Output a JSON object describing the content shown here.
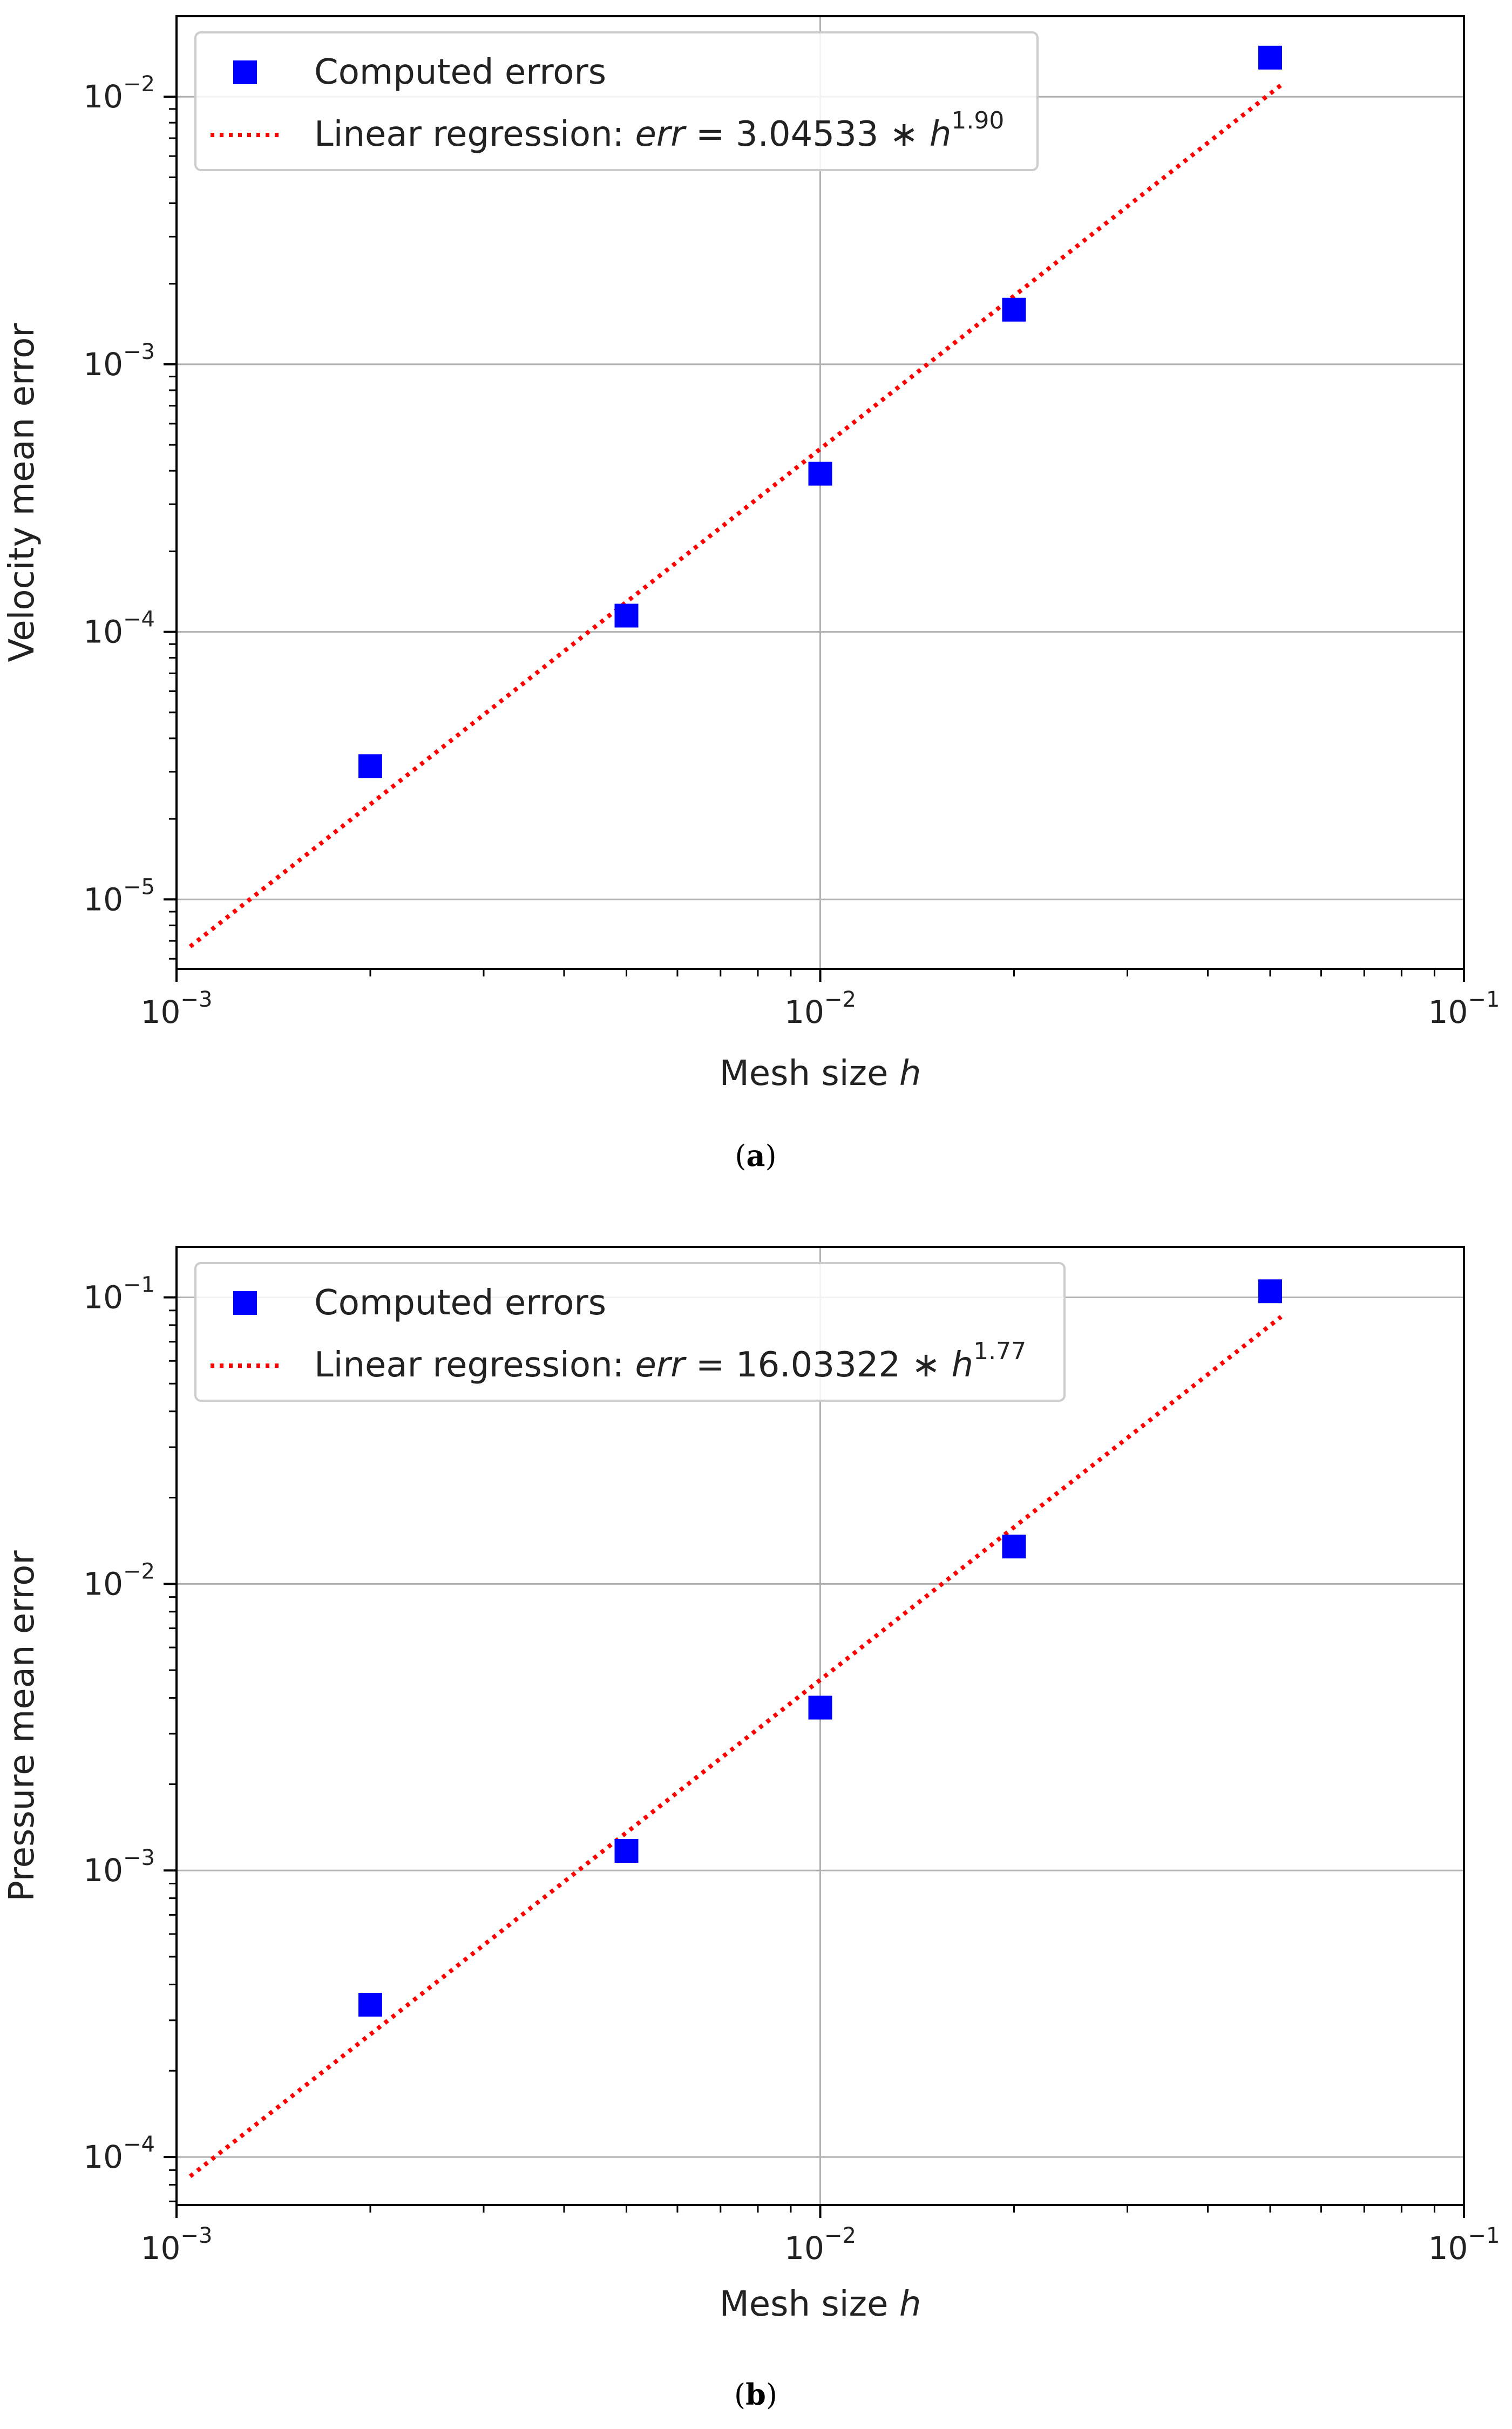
{
  "chart_data": [
    {
      "type": "scatter",
      "panel_label": "a",
      "xlabel": "Mesh size h",
      "ylabel": "Velocity mean error",
      "xscale": "log",
      "yscale": "log",
      "xlim": [
        0.001,
        0.1
      ],
      "ylim": [
        5.5e-06,
        0.02
      ],
      "x_ticks": [
        0.001,
        0.01,
        0.1
      ],
      "y_ticks": [
        1e-05,
        0.0001,
        0.001,
        0.01
      ],
      "x_tick_exponents": [
        "−3",
        "−2",
        "−1"
      ],
      "y_tick_exponents": [
        "−5",
        "−4",
        "−3",
        "−2"
      ],
      "grid": true,
      "legend_position": "top-left",
      "series": [
        {
          "name": "Computed errors",
          "kind": "markers",
          "marker": "square",
          "color": "#0000ff",
          "x": [
            0.002,
            0.005,
            0.01,
            0.02,
            0.05
          ],
          "y": [
            3.15e-05,
            0.000115,
            0.00039,
            0.0016,
            0.014
          ]
        },
        {
          "name": "Linear regression: err = 3.04533 * h^1.90",
          "kind": "line",
          "style": "dotted",
          "color": "#ff0000",
          "coefficient": 3.04533,
          "exponent": 1.9,
          "x_range": [
            0.00105,
            0.052
          ]
        }
      ],
      "legend": {
        "markers_label": "Computed errors",
        "line_prefix": "Linear regression: ",
        "line_var": "err",
        "line_eq": " = 3.04533 ∗ ",
        "line_h": "h",
        "line_exp": "1.90"
      }
    },
    {
      "type": "scatter",
      "panel_label": "b",
      "xlabel": "Mesh size h",
      "ylabel": "Pressure mean error",
      "xscale": "log",
      "yscale": "log",
      "xlim": [
        0.001,
        0.1
      ],
      "ylim": [
        6.8e-05,
        0.15
      ],
      "x_ticks": [
        0.001,
        0.01,
        0.1
      ],
      "y_ticks": [
        0.0001,
        0.001,
        0.01,
        0.1
      ],
      "x_tick_exponents": [
        "−3",
        "−2",
        "−1"
      ],
      "y_tick_exponents": [
        "−4",
        "−3",
        "−2",
        "−1"
      ],
      "grid": true,
      "legend_position": "top-left",
      "series": [
        {
          "name": "Computed errors",
          "kind": "markers",
          "marker": "square",
          "color": "#0000ff",
          "x": [
            0.002,
            0.005,
            0.01,
            0.02,
            0.05
          ],
          "y": [
            0.00034,
            0.00117,
            0.0037,
            0.0135,
            0.105
          ]
        },
        {
          "name": "Linear regression: err = 16.03322 * h^1.77",
          "kind": "line",
          "style": "dotted",
          "color": "#ff0000",
          "coefficient": 16.03322,
          "exponent": 1.77,
          "x_range": [
            0.00105,
            0.052
          ]
        }
      ],
      "legend": {
        "markers_label": "Computed errors",
        "line_prefix": "Linear regression: ",
        "line_var": "err",
        "line_eq": " = 16.03322 ∗ ",
        "line_h": "h",
        "line_exp": "1.77"
      }
    }
  ]
}
